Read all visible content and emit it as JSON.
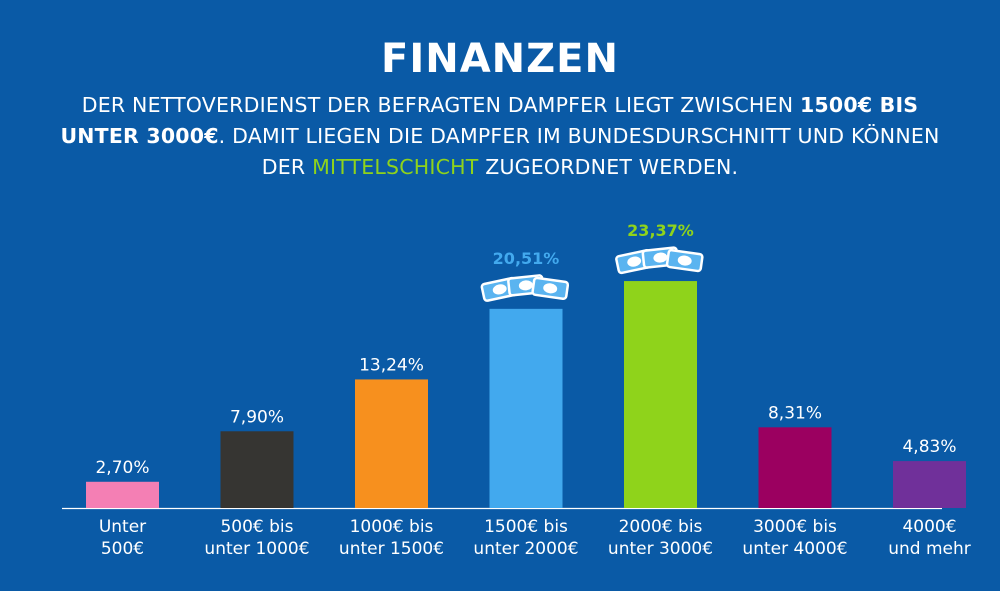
{
  "header": {
    "title": "FINANZEN",
    "text_1": "DER NETTOVERDIENST DER BEFRAGTEN DAMPFER LIEGT ZWISCHEN ",
    "text_bold": "1500€ BIS UNTER 3000€",
    "text_2": ". DAMIT LIEGEN DIE DAMPFER IM BUNDESDURSCHNITT UND KÖNNEN DER ",
    "text_highlight": "MITTELSCHICHT",
    "text_3": " ZUGEORDNET WERDEN."
  },
  "colors": {
    "background": "#0a5aa6",
    "highlight": "#8fd31b",
    "money-bills-icon": "#5ab4f0"
  },
  "chart_data": {
    "type": "bar",
    "categories": [
      [
        "Unter",
        "500€"
      ],
      [
        "500€ bis",
        "unter 1000€"
      ],
      [
        "1000€ bis",
        "unter 1500€"
      ],
      [
        "1500€ bis",
        "unter 2000€"
      ],
      [
        "2000€ bis",
        "unter 3000€"
      ],
      [
        "3000€ bis",
        "unter 4000€"
      ],
      [
        "4000€",
        "und mehr"
      ]
    ],
    "values": [
      2.7,
      7.9,
      13.24,
      20.51,
      23.37,
      8.31,
      4.83
    ],
    "labels": [
      "2,70%",
      "7,90%",
      "13,24%",
      "20,51%",
      "23,37%",
      "8,31%",
      "4,83%"
    ],
    "bar_colors": [
      "#f47fb4",
      "#363532",
      "#f7901e",
      "#42a9ee",
      "#8fd31b",
      "#9b0060",
      "#70309a"
    ],
    "label_colors": [
      "#ffffff",
      "#ffffff",
      "#ffffff",
      "#42a9ee",
      "#8fd31b",
      "#ffffff",
      "#ffffff"
    ],
    "bold_labels": [
      false,
      false,
      false,
      true,
      true,
      false,
      false
    ],
    "money_icon_bars": [
      3,
      4
    ],
    "ylim": [
      0,
      25
    ],
    "xlabel": "",
    "ylabel": ""
  }
}
